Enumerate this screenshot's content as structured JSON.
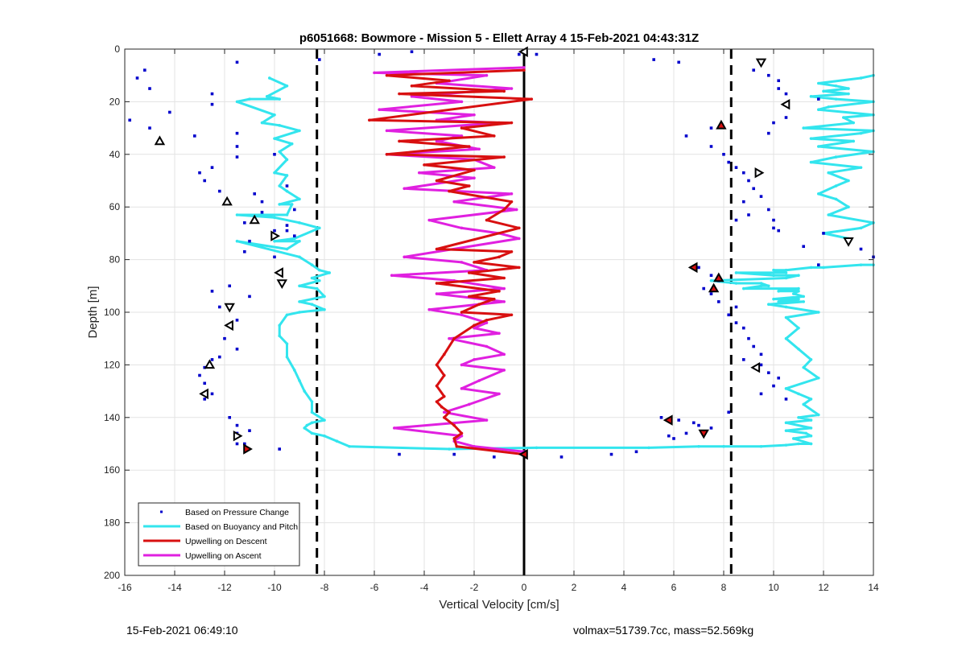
{
  "footer": {
    "left": "15-Feb-2021 06:49:10",
    "right": "volmax=51739.7cc, mass=52.569kg"
  },
  "colors": {
    "pressure": "#0000cc",
    "buoyancy": "#33e5ee",
    "descent": "#d81010",
    "ascent": "#e020e0"
  },
  "chart_data": {
    "type": "line",
    "title": "p6051668: Bowmore - Mission 5 - Ellett Array 4 15-Feb-2021 04:43:31Z",
    "xlabel": "Vertical Velocity [cm/s]",
    "ylabel": "Depth [m]",
    "xlim": [
      -16,
      14
    ],
    "ylim": [
      0,
      200
    ],
    "y_reversed": true,
    "xticks": [
      "-16",
      "-14",
      "-12",
      "-10",
      "-8",
      "-6",
      "-4",
      "-2",
      "0",
      "2",
      "4",
      "6",
      "8",
      "10",
      "12",
      "14"
    ],
    "yticks": [
      "0",
      "20",
      "40",
      "60",
      "80",
      "100",
      "120",
      "140",
      "160",
      "180",
      "200"
    ],
    "grid": true,
    "legend_position": "bottom-left",
    "reference_lines": {
      "dashed_x": [
        -8.3,
        8.3
      ],
      "solid_x": [
        0
      ]
    },
    "series": [
      {
        "name": "Based on Pressure Change",
        "style": "points",
        "x": [
          -11.5,
          -15.2,
          -15.5,
          -15.0,
          -15.8,
          -14.2,
          -15.0,
          -12.5,
          -12.5,
          -11.5,
          -13.2,
          -11.5,
          -11.5,
          -10.0,
          -12.8,
          -13.0,
          -12.5,
          -12.2,
          -10.8,
          -10.5,
          -9.5,
          -10.5,
          -9.2,
          -9.5,
          -11.2,
          -11.0,
          -10.0,
          -9.5,
          -9.2,
          -10.0,
          -11.2,
          -12.5,
          -11.8,
          -11.0,
          -12.2,
          -11.5,
          -12.0,
          -11.5,
          -12.2,
          -12.5,
          -12.8,
          -13.0,
          -12.8,
          -12.5,
          -12.8,
          -11.8,
          -11.5,
          -11.0,
          -11.5,
          -11.5,
          -11.2,
          -9.8,
          -8.2,
          -5.8,
          -5.0,
          -4.5,
          -2.8,
          -1.2,
          -0.2,
          0.5,
          1.5,
          3.5,
          4.5,
          5.2,
          6.2,
          6.5,
          7.5,
          9.2,
          9.8,
          10.2,
          10.2,
          10.5,
          11.8,
          10.5,
          10.0,
          9.8,
          7.5,
          8.0,
          8.2,
          8.5,
          8.8,
          9.0,
          9.2,
          9.5,
          8.8,
          9.0,
          9.8,
          10.0,
          8.5,
          10.2,
          10.0,
          12.0,
          11.2,
          11.8,
          13.5,
          14.0,
          7.2,
          7.0,
          7.5,
          7.8,
          7.5,
          7.8,
          8.5,
          8.2,
          8.5,
          8.8,
          9.0,
          9.2,
          9.5,
          8.8,
          9.5,
          9.8,
          10.2,
          10.0,
          9.5,
          10.5,
          5.5,
          6.5,
          7.0,
          7.5,
          6.8,
          5.8,
          6.0,
          7.2,
          8.2,
          6.2
        ],
        "y": [
          5,
          8,
          11,
          15,
          27,
          24,
          30,
          17,
          21,
          32,
          33,
          37,
          41,
          40,
          50,
          47,
          45,
          54,
          55,
          58,
          52,
          62,
          61,
          67,
          66,
          73,
          69,
          69,
          71,
          79,
          77,
          92,
          90,
          94,
          98,
          103,
          110,
          114,
          117,
          118,
          121,
          124,
          127,
          131,
          133,
          140,
          143,
          145,
          146,
          150,
          150,
          152,
          4,
          2,
          154,
          1,
          154,
          155,
          2,
          2,
          155,
          154,
          153,
          4,
          5,
          33,
          30,
          8,
          10,
          12,
          15,
          17,
          19,
          26,
          28,
          32,
          37,
          40,
          43,
          45,
          47,
          50,
          53,
          56,
          58,
          63,
          61,
          65,
          65,
          69,
          68,
          70,
          75,
          82,
          76,
          79,
          91,
          83,
          86,
          88,
          93,
          96,
          98,
          101,
          104,
          106,
          110,
          113,
          116,
          118,
          120,
          123,
          125,
          128,
          131,
          133,
          140,
          146,
          143,
          144,
          142,
          147,
          148,
          146,
          138,
          141
        ]
      },
      {
        "name": "Based on Buoyancy and Pitch",
        "style": "line",
        "segments": [
          {
            "x": [
              -10.2,
              -9.5,
              -10.3,
              -9.8,
              -11.0,
              -11.5,
              -10.0,
              -10.5,
              -9.8,
              -9.0,
              -10.0,
              -9.3,
              -9.8,
              -9.5,
              -10.0,
              -9.5,
              -9.8,
              -9.5,
              -9.0,
              -9.8,
              -9.3,
              -9.5,
              -11.5,
              -10.0,
              -9.0,
              -8.2,
              -9.2,
              -10.0,
              -9.0,
              -9.5,
              -11.5,
              -9.0,
              -8.5,
              -8.2,
              -7.8,
              -8.5,
              -8.2,
              -9.0,
              -8.3,
              -8.0,
              -9.0,
              -8.5,
              -8.0,
              -9.0,
              -9.5,
              -9.8,
              -9.8,
              -9.5,
              -9.5,
              -9.2,
              -9.0,
              -8.8,
              -8.5,
              -8.5,
              -8.0,
              -8.5,
              -8.7,
              -8.8,
              -8.5,
              -8.0,
              -7.5,
              -7.0,
              -3.0,
              0.5,
              5.0,
              7.0,
              8.0,
              9.5,
              10.5,
              11.0,
              11.5
            ],
            "y": [
              11,
              14,
              18,
              19,
              19,
              20,
              25,
              28,
              29,
              31,
              34,
              36,
              39,
              42,
              47,
              48,
              52,
              54,
              57,
              59,
              59,
              63,
              63,
              64,
              66,
              68,
              72,
              73,
              73,
              76,
              73,
              79,
              82,
              84,
              85,
              87,
              88,
              90,
              91,
              94,
              96,
              97,
              99,
              100,
              101,
              105,
              109,
              112,
              117,
              122,
              126,
              130,
              134,
              138,
              141,
              142,
              143,
              144,
              146,
              147,
              149,
              151,
              152,
              151.5,
              151.5,
              151,
              151,
              151,
              150.5,
              150,
              150
            ]
          },
          {
            "x": [
              11.5,
              10.8,
              11.5,
              11.3,
              10.5,
              11.5,
              10.5,
              11.5,
              11.0,
              11.8,
              11.2,
              11.5,
              11.0,
              10.5,
              11.8,
              11.2,
              11.5,
              11.0,
              10.5,
              11.0,
              10.5,
              11.8,
              10.5,
              9.8,
              11.2,
              10.2,
              11.0,
              10.0,
              11.2,
              10.8,
              11.0,
              10.2,
              11.0,
              8.8,
              9.5,
              9.8,
              9.5,
              8.5,
              7.5,
              10.5,
              11.0,
              10.0,
              8.5,
              10.5,
              10.0,
              10.5,
              11.5,
              12.0,
              13.5,
              14.0
            ],
            "y": [
              150,
              148,
              147,
              146,
              145,
              144,
              142,
              141,
              140,
              139,
              135,
              133,
              131,
              129,
              125,
              121,
              118,
              114,
              110,
              106,
              102,
              100,
              98,
              97,
              96,
              96,
              95,
              95,
              94,
              93,
              92,
              92,
              91,
              91,
              90,
              90,
              89,
              89,
              88,
              87,
              86,
              86,
              85,
              85,
              84,
              84,
              83,
              83,
              82,
              82
            ]
          },
          {
            "x": [
              13.0,
              12.0,
              13.5,
              14.0,
              12.2,
              13.0,
              12.5,
              11.8,
              12.5,
              13.0,
              12.2,
              13.5,
              11.5,
              12.5,
              14.0,
              11.8,
              13.2,
              11.5,
              13.5,
              14.0,
              11.2,
              13.2,
              12.8,
              14.0,
              11.8,
              12.2,
              14.0,
              12.5,
              11.5,
              13.0,
              12.0,
              13.0,
              12.5,
              11.8,
              13.5,
              14.0
            ],
            "y": [
              72,
              70,
              68,
              66,
              63,
              60,
              57,
              55,
              52,
              50,
              47,
              45,
              43,
              41,
              39,
              37,
              35,
              34,
              32,
              31,
              30,
              28,
              26,
              25,
              23,
              22,
              20,
              19,
              18,
              17,
              16,
              15,
              14,
              13,
              11,
              10
            ]
          }
        ]
      },
      {
        "name": "Upwelling on Descent",
        "style": "line",
        "x": [
          0.0,
          -5.5,
          -3.0,
          -4.5,
          -0.8,
          -5.0,
          0.3,
          -6.2,
          -0.5,
          -2.5,
          -1.2,
          -5.0,
          -2.2,
          -5.5,
          -0.8,
          -4.0,
          -2.0,
          -3.5,
          -2.2,
          -3.0,
          -0.5,
          -0.8,
          -1.5,
          -0.2,
          -3.5,
          -0.5,
          -1.0,
          -2.0,
          -0.2,
          -2.2,
          -0.8,
          -3.5,
          -1.0,
          -2.2,
          -1.2,
          -1.8,
          -2.5,
          -0.5,
          -1.5,
          -2.0,
          -2.8,
          -3.2,
          -3.5,
          -3.2,
          -3.5,
          -3.2,
          -3.5,
          -3.3,
          -3.0,
          -3.2,
          -2.8,
          -2.5,
          -2.8,
          -2.7,
          0.0
        ],
        "y": [
          8,
          10,
          12,
          14,
          16,
          17,
          19,
          27,
          28,
          30,
          33,
          35,
          37,
          40,
          41,
          44,
          46,
          50,
          52,
          54,
          58,
          61,
          65,
          68,
          76,
          77,
          79,
          81,
          83,
          85,
          87,
          89,
          92,
          94,
          95,
          97,
          100,
          101,
          103,
          105,
          110,
          116,
          120,
          124,
          128,
          132,
          134,
          136,
          138,
          140,
          143,
          146,
          148,
          151,
          154
        ]
      },
      {
        "name": "Upwelling on Ascent",
        "style": "line",
        "x": [
          0.0,
          -6.0,
          -1.5,
          -3.5,
          -0.5,
          -4.5,
          -2.5,
          -5.8,
          -2.0,
          -3.5,
          -1.0,
          -5.5,
          -2.5,
          -3.5,
          -1.8,
          -5.5,
          -2.0,
          -1.2,
          -4.2,
          -2.0,
          -4.8,
          -0.5,
          -2.8,
          -0.3,
          -3.8,
          -2.5,
          -1.0,
          -0.2,
          -4.8,
          -2.5,
          -1.5,
          -5.3,
          -2.8,
          -0.8,
          -3.5,
          -0.8,
          -3.8,
          -2.5,
          -1.5,
          -2.0,
          -1.0,
          -3.0,
          -1.5,
          -0.8,
          -2.0,
          -2.5,
          -0.8,
          -1.8,
          -2.5,
          -1.0,
          -2.2,
          -3.2,
          -1.5,
          -5.2,
          -2.5,
          -2.8,
          -2.0,
          0.0
        ],
        "y": [
          7,
          9,
          10,
          13,
          15,
          18,
          20,
          23,
          25,
          27,
          28,
          31,
          33,
          35,
          38,
          40,
          42,
          45,
          47,
          49,
          53,
          55,
          58,
          61,
          65,
          68,
          70,
          72,
          79,
          81,
          84,
          86,
          88,
          91,
          93,
          96,
          99,
          101,
          104,
          106,
          108,
          110,
          113,
          116,
          118,
          120,
          122,
          126,
          129,
          131,
          135,
          138,
          141,
          144,
          147,
          149,
          151,
          153
        ]
      }
    ],
    "markers": [
      {
        "shape": "tri-left",
        "fill": "white",
        "x": 0.0,
        "y": 1
      },
      {
        "shape": "tri-up",
        "fill": "white",
        "x": -14.6,
        "y": 35
      },
      {
        "shape": "tri-up",
        "fill": "white",
        "x": -11.9,
        "y": 58
      },
      {
        "shape": "tri-up",
        "fill": "white",
        "x": -10.8,
        "y": 65
      },
      {
        "shape": "tri-right",
        "fill": "white",
        "x": -10.0,
        "y": 71
      },
      {
        "shape": "tri-left",
        "fill": "white",
        "x": -9.8,
        "y": 85
      },
      {
        "shape": "tri-down",
        "fill": "white",
        "x": -9.7,
        "y": 89
      },
      {
        "shape": "tri-down",
        "fill": "white",
        "x": -11.8,
        "y": 98
      },
      {
        "shape": "tri-left",
        "fill": "white",
        "x": -11.8,
        "y": 105
      },
      {
        "shape": "tri-up",
        "fill": "white",
        "x": -12.6,
        "y": 120
      },
      {
        "shape": "tri-left",
        "fill": "white",
        "x": -12.8,
        "y": 131
      },
      {
        "shape": "tri-right",
        "fill": "white",
        "x": -11.5,
        "y": 147
      },
      {
        "shape": "tri-right",
        "fill": "red",
        "x": -11.1,
        "y": 152
      },
      {
        "shape": "tri-left",
        "fill": "red",
        "x": 0.0,
        "y": 154
      },
      {
        "shape": "tri-down",
        "fill": "white",
        "x": 9.5,
        "y": 5
      },
      {
        "shape": "tri-left",
        "fill": "white",
        "x": 10.5,
        "y": 21
      },
      {
        "shape": "tri-up",
        "fill": "red",
        "x": 7.9,
        "y": 29
      },
      {
        "shape": "tri-right",
        "fill": "white",
        "x": 9.4,
        "y": 47
      },
      {
        "shape": "tri-down",
        "fill": "white",
        "x": 13.0,
        "y": 73
      },
      {
        "shape": "tri-left",
        "fill": "red",
        "x": 6.8,
        "y": 83
      },
      {
        "shape": "tri-up",
        "fill": "red",
        "x": 7.8,
        "y": 87
      },
      {
        "shape": "tri-up",
        "fill": "red",
        "x": 7.6,
        "y": 91
      },
      {
        "shape": "tri-left",
        "fill": "white",
        "x": 9.3,
        "y": 121
      },
      {
        "shape": "tri-left",
        "fill": "red",
        "x": 5.8,
        "y": 141
      },
      {
        "shape": "tri-down",
        "fill": "red",
        "x": 7.2,
        "y": 146
      }
    ]
  }
}
